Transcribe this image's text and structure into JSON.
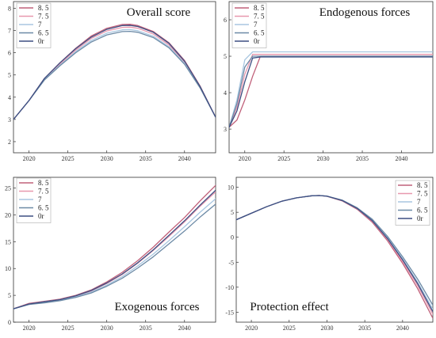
{
  "chart_data": [
    {
      "type": "line",
      "title": "Overall score",
      "legend_position": "top-left",
      "xlim": [
        2018,
        2044
      ],
      "ylim": [
        1.5,
        8.3
      ],
      "x_ticks": [
        2020,
        2025,
        2030,
        2035,
        2040
      ],
      "x_tick_labels": [
        "2020",
        "2025",
        "2030",
        "2035",
        "2040"
      ],
      "y_ticks": [
        2,
        3,
        4,
        5,
        6,
        7,
        8
      ],
      "y_tick_labels": [
        "2",
        "3",
        "4",
        "5",
        "6",
        "7",
        "8"
      ],
      "x": [
        2018,
        2020,
        2022,
        2024,
        2026,
        2028,
        2030,
        2032,
        2033,
        2034,
        2036,
        2038,
        2040,
        2042,
        2044
      ],
      "series": [
        {
          "name": "8. 5",
          "color": "#c0607a",
          "values": [
            3.0,
            3.85,
            4.85,
            5.55,
            6.2,
            6.75,
            7.1,
            7.27,
            7.28,
            7.22,
            6.95,
            6.45,
            5.65,
            4.5,
            3.1
          ]
        },
        {
          "name": "7. 5",
          "color": "#e898ae",
          "values": [
            3.0,
            3.85,
            4.82,
            5.5,
            6.12,
            6.64,
            6.98,
            7.14,
            7.15,
            7.1,
            6.84,
            6.35,
            5.58,
            4.47,
            3.1
          ]
        },
        {
          "name": "7",
          "color": "#a8c6e0",
          "values": [
            3.0,
            3.85,
            4.8,
            5.45,
            6.05,
            6.55,
            6.88,
            7.03,
            7.04,
            6.99,
            6.74,
            6.27,
            5.52,
            4.44,
            3.1
          ]
        },
        {
          "name": "6. 5",
          "color": "#6c8aa6",
          "values": [
            3.0,
            3.85,
            4.78,
            5.42,
            6.0,
            6.48,
            6.8,
            6.95,
            6.96,
            6.92,
            6.68,
            6.22,
            5.48,
            4.42,
            3.1
          ]
        },
        {
          "name": "0r",
          "color": "#3d4f82",
          "values": [
            3.0,
            3.85,
            4.85,
            5.55,
            6.18,
            6.7,
            7.05,
            7.22,
            7.23,
            7.18,
            6.92,
            6.42,
            5.62,
            4.48,
            3.1
          ]
        }
      ]
    },
    {
      "type": "line",
      "title": "Endogenous forces",
      "legend_position": "top-left",
      "xlim": [
        2018,
        2044
      ],
      "ylim": [
        2.35,
        6.5
      ],
      "x_ticks": [
        2020,
        2025,
        2030,
        2035,
        2040
      ],
      "x_tick_labels": [
        "2020",
        "2025",
        "2030",
        "2035",
        "2040"
      ],
      "y_ticks": [
        3,
        4,
        5,
        6
      ],
      "y_tick_labels": [
        "3",
        "4",
        "5",
        "6"
      ],
      "x": [
        2018,
        2019,
        2020,
        2021,
        2022,
        2023,
        2030,
        2040,
        2044
      ],
      "series": [
        {
          "name": "8. 5",
          "color": "#c0607a",
          "values": [
            3.05,
            3.25,
            3.8,
            4.45,
            5.0,
            5.0,
            5.0,
            5.0,
            5.0
          ]
        },
        {
          "name": "7. 5",
          "color": "#e898ae",
          "values": [
            3.05,
            3.6,
            4.5,
            5.05,
            5.05,
            5.05,
            5.05,
            5.05,
            5.05
          ]
        },
        {
          "name": "7",
          "color": "#a8c6e0",
          "values": [
            3.05,
            3.8,
            4.9,
            5.12,
            5.12,
            5.12,
            5.12,
            5.12,
            5.12
          ]
        },
        {
          "name": "6. 5",
          "color": "#6c8aa6",
          "values": [
            3.05,
            3.7,
            4.7,
            5.0,
            5.0,
            5.0,
            5.0,
            5.0,
            5.0
          ]
        },
        {
          "name": "0r",
          "color": "#3d4f82",
          "values": [
            3.05,
            3.5,
            4.3,
            4.95,
            4.98,
            4.98,
            4.98,
            4.98,
            4.98
          ]
        }
      ]
    },
    {
      "type": "line",
      "title": "Exogenous forces",
      "legend_position": "top-left",
      "xlim": [
        2018,
        2044
      ],
      "ylim": [
        0,
        27
      ],
      "x_ticks": [
        2020,
        2025,
        2030,
        2035,
        2040
      ],
      "x_tick_labels": [
        "2020",
        "2025",
        "2030",
        "2035",
        "2040"
      ],
      "y_ticks": [
        0,
        5,
        10,
        15,
        20,
        25
      ],
      "y_tick_labels": [
        "0",
        "5",
        "10",
        "15",
        "20",
        "25"
      ],
      "x": [
        2018,
        2020,
        2022,
        2024,
        2026,
        2028,
        2030,
        2032,
        2034,
        2036,
        2038,
        2040,
        2042,
        2044
      ],
      "series": [
        {
          "name": "8. 5",
          "color": "#c0607a",
          "values": [
            2.5,
            3.5,
            3.9,
            4.3,
            5.0,
            6.0,
            7.5,
            9.3,
            11.5,
            14.0,
            16.8,
            19.5,
            22.6,
            25.5
          ]
        },
        {
          "name": "7. 5",
          "color": "#e898ae",
          "values": [
            2.5,
            3.4,
            3.8,
            4.2,
            4.85,
            5.8,
            7.2,
            8.9,
            11.0,
            13.4,
            16.0,
            18.7,
            21.6,
            24.3
          ]
        },
        {
          "name": "7",
          "color": "#a8c6e0",
          "values": [
            2.5,
            3.3,
            3.7,
            4.1,
            4.7,
            5.6,
            6.9,
            8.5,
            10.5,
            12.7,
            15.2,
            17.8,
            20.5,
            23.0
          ]
        },
        {
          "name": "6. 5",
          "color": "#6c8aa6",
          "values": [
            2.5,
            3.3,
            3.6,
            4.0,
            4.6,
            5.45,
            6.7,
            8.2,
            10.1,
            12.2,
            14.6,
            17.0,
            19.6,
            22.0
          ]
        },
        {
          "name": "0r",
          "color": "#3d4f82",
          "values": [
            2.5,
            3.4,
            3.8,
            4.2,
            4.9,
            5.9,
            7.3,
            9.0,
            11.1,
            13.5,
            16.2,
            18.9,
            21.8,
            24.6
          ]
        }
      ]
    },
    {
      "type": "line",
      "title": "Protection effect",
      "legend_position": "top-right",
      "xlim": [
        2018,
        2044
      ],
      "ylim": [
        -17,
        12
      ],
      "x_ticks": [
        2020,
        2025,
        2030,
        2035,
        2040
      ],
      "x_tick_labels": [
        "2020",
        "2025",
        "2030",
        "2035",
        "2040"
      ],
      "y_ticks": [
        10,
        5,
        0,
        -5,
        -10,
        -15
      ],
      "y_tick_labels": [
        "10",
        "5",
        "0",
        "-5",
        "-10",
        "-15"
      ],
      "x": [
        2018,
        2020,
        2022,
        2024,
        2026,
        2028,
        2029,
        2030,
        2032,
        2034,
        2036,
        2038,
        2040,
        2042,
        2044
      ],
      "series": [
        {
          "name": "8. 5",
          "color": "#c0607a",
          "values": [
            3.5,
            4.8,
            6.1,
            7.2,
            7.9,
            8.3,
            8.35,
            8.2,
            7.3,
            5.6,
            3.0,
            -0.7,
            -5.2,
            -10.3,
            -16.2
          ]
        },
        {
          "name": "7. 5",
          "color": "#e898ae",
          "values": [
            3.5,
            4.8,
            6.1,
            7.2,
            7.9,
            8.3,
            8.35,
            8.2,
            7.35,
            5.7,
            3.2,
            -0.4,
            -4.8,
            -9.7,
            -15.4
          ]
        },
        {
          "name": "7",
          "color": "#a8c6e0",
          "values": [
            3.5,
            4.8,
            6.1,
            7.2,
            7.9,
            8.3,
            8.35,
            8.22,
            7.4,
            5.8,
            3.4,
            -0.1,
            -4.3,
            -9.0,
            -14.4
          ]
        },
        {
          "name": "6. 5",
          "color": "#6c8aa6",
          "values": [
            3.5,
            4.8,
            6.1,
            7.2,
            7.9,
            8.3,
            8.35,
            8.24,
            7.45,
            5.9,
            3.6,
            0.2,
            -3.9,
            -8.4,
            -13.6
          ]
        },
        {
          "name": "0r",
          "color": "#3d4f82",
          "values": [
            3.5,
            4.8,
            6.1,
            7.2,
            7.9,
            8.3,
            8.35,
            8.21,
            7.38,
            5.75,
            3.3,
            -0.25,
            -4.5,
            -9.3,
            -14.9
          ]
        }
      ]
    }
  ]
}
